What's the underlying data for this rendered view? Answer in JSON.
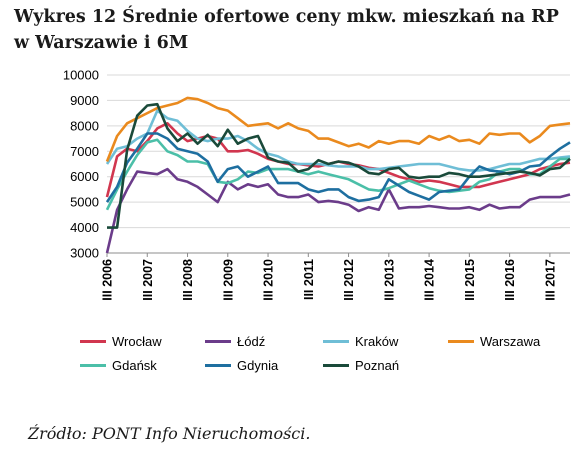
{
  "title": "Wykres 12 Średnie ofertowe ceny mkw. mieszkań na RP w Warszawie i 6M",
  "source": "Źródło: PONT Info Nieruchomości.",
  "chart_data": {
    "type": "line",
    "title": "Wykres 12 Średnie ofertowe ceny mkw. mieszkań na RP w Warszawie i 6M",
    "xlabel": "",
    "ylabel": "",
    "ylim": [
      3000,
      10000
    ],
    "yticks": [
      3000,
      4000,
      5000,
      6000,
      7000,
      8000,
      9000,
      10000
    ],
    "x_start": "III 2006",
    "x_end": "IV 2017",
    "xtick_labels": [
      "III 2006",
      "III 2007",
      "III 2008",
      "III 2009",
      "III 2010",
      "III 2011",
      "III 2012",
      "III 2013",
      "III 2014",
      "III 2015",
      "III 2016",
      "III 2017"
    ],
    "grid": true,
    "legend_position": "bottom",
    "series": [
      {
        "name": "Wrocław",
        "color": "#d1364f",
        "values": [
          5200,
          6800,
          7100,
          7000,
          7400,
          7900,
          8100,
          7700,
          7400,
          7500,
          7600,
          7500,
          7000,
          7000,
          7050,
          6900,
          6700,
          6600,
          6500,
          6500,
          6450,
          6400,
          6500,
          6600,
          6500,
          6450,
          6350,
          6300,
          6150,
          6000,
          5900,
          5800,
          5850,
          5800,
          5700,
          5600,
          5600,
          5600,
          5700,
          5800,
          5900,
          6000,
          6100,
          6300,
          6400,
          6500,
          6550
        ]
      },
      {
        "name": "Łódź",
        "color": "#6b3c8a",
        "values": [
          3000,
          4700,
          5500,
          6200,
          6150,
          6100,
          6300,
          5900,
          5800,
          5600,
          5300,
          5000,
          5800,
          5500,
          5700,
          5600,
          5700,
          5300,
          5200,
          5200,
          5300,
          5000,
          5050,
          5000,
          4900,
          4650,
          4800,
          4700,
          5500,
          4750,
          4800,
          4800,
          4850,
          4800,
          4750,
          4750,
          4800,
          4700,
          4900,
          4750,
          4800,
          4800,
          5100,
          5200,
          5200,
          5200,
          5300
        ]
      },
      {
        "name": "Kraków",
        "color": "#6fbed6",
        "values": [
          6500,
          7100,
          7200,
          7500,
          7700,
          8600,
          8300,
          8200,
          7800,
          7500,
          7400,
          7500,
          7500,
          7600,
          7400,
          7100,
          6900,
          6800,
          6600,
          6500,
          6500,
          6500,
          6450,
          6400,
          6400,
          6400,
          6300,
          6300,
          6350,
          6400,
          6450,
          6500,
          6500,
          6500,
          6400,
          6300,
          6250,
          6250,
          6300,
          6400,
          6500,
          6500,
          6600,
          6700,
          6700,
          6750,
          6800
        ]
      },
      {
        "name": "Warszawa",
        "color": "#ea8a1e",
        "values": [
          6600,
          7600,
          8100,
          8300,
          8500,
          8700,
          8800,
          8900,
          9100,
          9050,
          8900,
          8700,
          8600,
          8300,
          8000,
          8050,
          8100,
          7900,
          8100,
          7900,
          7800,
          7500,
          7500,
          7350,
          7200,
          7300,
          7150,
          7400,
          7300,
          7400,
          7400,
          7300,
          7600,
          7450,
          7600,
          7400,
          7450,
          7300,
          7700,
          7650,
          7700,
          7700,
          7350,
          7600,
          8000,
          8050,
          8100
        ]
      },
      {
        "name": "Gdańsk",
        "color": "#4bbfa8",
        "values": [
          4700,
          5500,
          6200,
          6850,
          7350,
          7450,
          7000,
          6850,
          6600,
          6600,
          6500,
          5800,
          5750,
          5900,
          6200,
          6150,
          6300,
          6300,
          6300,
          6200,
          6100,
          6200,
          6100,
          6000,
          5900,
          5700,
          5500,
          5450,
          5550,
          5700,
          5850,
          5700,
          5550,
          5450,
          5400,
          5450,
          5500,
          5800,
          5900,
          6200,
          6300,
          6300,
          6100,
          6100,
          6400,
          6700,
          6700
        ]
      },
      {
        "name": "Gdynia",
        "color": "#1e6fa0",
        "values": [
          5000,
          5600,
          6550,
          7100,
          7700,
          7700,
          7500,
          7100,
          7000,
          6900,
          6600,
          5800,
          6300,
          6400,
          6000,
          6200,
          6400,
          5750,
          5750,
          5750,
          5500,
          5400,
          5500,
          5500,
          5200,
          5050,
          5100,
          5200,
          5900,
          5650,
          5400,
          5250,
          5100,
          5400,
          5450,
          5500,
          6000,
          6400,
          6250,
          6200,
          6100,
          6200,
          6400,
          6450,
          6800,
          7100,
          7350
        ]
      },
      {
        "name": "Poznań",
        "color": "#1a4a3a",
        "values": [
          4000,
          4000,
          7050,
          8400,
          8800,
          8850,
          7900,
          7400,
          7700,
          7300,
          7650,
          7200,
          7850,
          7300,
          7500,
          7600,
          6750,
          6600,
          6550,
          6200,
          6300,
          6650,
          6500,
          6600,
          6550,
          6400,
          6150,
          6100,
          6300,
          6350,
          6000,
          5950,
          6000,
          6000,
          6150,
          6100,
          6000,
          6000,
          6050,
          6100,
          6150,
          6200,
          6150,
          6050,
          6300,
          6350,
          6700
        ]
      }
    ]
  }
}
